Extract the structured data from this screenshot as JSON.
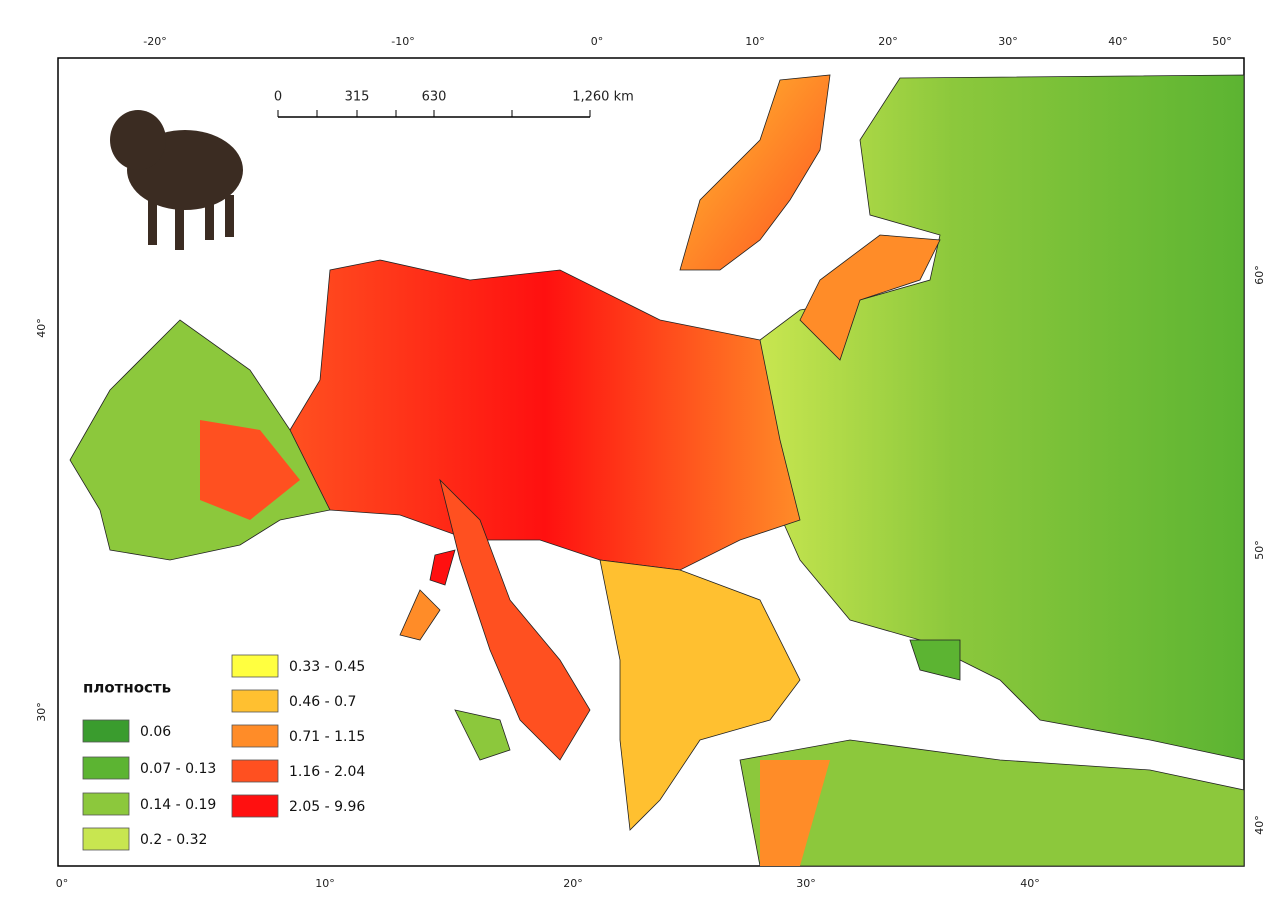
{
  "map": {
    "top_ticks": [
      "-20°",
      "-10°",
      "0°",
      "10°",
      "20°",
      "30°",
      "40°",
      "50°"
    ],
    "bottom_ticks": [
      "0°",
      "10°",
      "20°",
      "30°",
      "40°"
    ],
    "left_ticks": [
      "40°",
      "30°"
    ],
    "right_ticks": [
      "60°",
      "50°",
      "40°"
    ],
    "scale_bar": [
      "0",
      "315",
      "630",
      "1,260 km"
    ],
    "legend": {
      "title": "плотность",
      "items": [
        {
          "label": "0.06",
          "color": "#3a9c2e"
        },
        {
          "label": "0.07 - 0.13",
          "color": "#5cb432"
        },
        {
          "label": "0.14 - 0.19",
          "color": "#8cc83c"
        },
        {
          "label": "0.2 - 0.32",
          "color": "#c8e650"
        },
        {
          "label": "0.33 - 0.45",
          "color": "#ffff40"
        },
        {
          "label": "0.46 - 0.7",
          "color": "#ffc030"
        },
        {
          "label": "0.71 - 1.15",
          "color": "#ff8c28"
        },
        {
          "label": "1.16 - 2.04",
          "color": "#ff5020"
        },
        {
          "label": "2.05 - 9.96",
          "color": "#ff1010"
        }
      ]
    }
  }
}
